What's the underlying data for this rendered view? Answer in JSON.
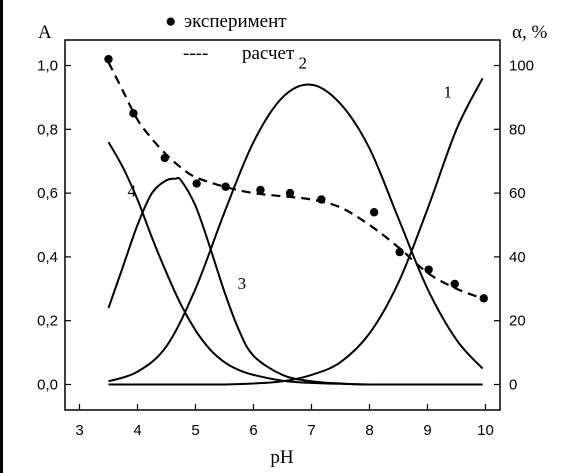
{
  "chart_data": {
    "type": "line",
    "xlabel": "pH",
    "ylabel_left": "A",
    "ylabel_right": "α, %",
    "xlim": [
      2.75,
      10.25
    ],
    "ylim_left": [
      -0.08,
      1.08
    ],
    "ylim_right": [
      -8,
      108
    ],
    "x_ticks": [
      "3",
      "4",
      "5",
      "6",
      "7",
      "8",
      "9",
      "10"
    ],
    "x_tick_values": [
      3,
      4,
      5,
      6,
      7,
      8,
      9,
      10
    ],
    "y_left_ticks": [
      "0,0",
      "0,2",
      "0,4",
      "0,6",
      "0,8",
      "1,0"
    ],
    "y_left_tick_values": [
      0,
      0.2,
      0.4,
      0.6,
      0.8,
      1.0
    ],
    "y_right_ticks": [
      "0",
      "20",
      "40",
      "60",
      "80",
      "100"
    ],
    "y_right_tick_values": [
      0,
      20,
      40,
      60,
      80,
      100
    ],
    "legend": [
      {
        "marker": "●",
        "label": "эксперимент"
      },
      {
        "marker": "----",
        "label": "расчет"
      }
    ],
    "series": [
      {
        "name": "1",
        "axis": "left",
        "style": "solid",
        "label_at": {
          "x": 9.35,
          "y": 0.9
        },
        "x": [
          3.5,
          4,
          4.5,
          5,
          5.5,
          6,
          6.5,
          7,
          7.5,
          8,
          8.5,
          9,
          9.5,
          9.95
        ],
        "y": [
          0,
          0,
          0,
          0,
          0,
          0.003,
          0.01,
          0.03,
          0.07,
          0.16,
          0.32,
          0.55,
          0.8,
          0.96
        ]
      },
      {
        "name": "2",
        "axis": "left",
        "style": "solid",
        "label_at": {
          "x": 6.85,
          "y": 0.99
        },
        "x": [
          3.5,
          4,
          4.5,
          5,
          5.5,
          6,
          6.5,
          7,
          7.5,
          8,
          8.5,
          9,
          9.5,
          9.95
        ],
        "y": [
          0.01,
          0.04,
          0.12,
          0.3,
          0.54,
          0.76,
          0.9,
          0.94,
          0.88,
          0.74,
          0.52,
          0.3,
          0.14,
          0.05
        ]
      },
      {
        "name": "3",
        "axis": "left",
        "style": "solid",
        "label_at": {
          "x": 5.8,
          "y": 0.3
        },
        "x": [
          3.5,
          3.75,
          4,
          4.25,
          4.5,
          4.65,
          4.75,
          5,
          5.25,
          5.5,
          5.75,
          6,
          6.5,
          7,
          7.5,
          8,
          9,
          9.95
        ],
        "y": [
          0.24,
          0.37,
          0.5,
          0.6,
          0.64,
          0.645,
          0.64,
          0.56,
          0.43,
          0.29,
          0.17,
          0.09,
          0.03,
          0.01,
          0.003,
          0,
          0,
          0
        ]
      },
      {
        "name": "4",
        "axis": "left",
        "style": "solid",
        "label_at": {
          "x": 3.9,
          "y": 0.59
        },
        "x": [
          3.5,
          3.75,
          4,
          4.25,
          4.5,
          4.75,
          5,
          5.25,
          5.5,
          5.75,
          6,
          6.5,
          7,
          7.5,
          8,
          9,
          9.95
        ],
        "y": [
          0.76,
          0.68,
          0.58,
          0.46,
          0.35,
          0.25,
          0.17,
          0.11,
          0.07,
          0.045,
          0.03,
          0.012,
          0.005,
          0.002,
          0,
          0,
          0
        ]
      },
      {
        "name": "расчет",
        "axis": "right",
        "style": "dashed",
        "x": [
          3.5,
          3.75,
          4,
          4.25,
          4.5,
          4.75,
          5,
          5.5,
          6,
          6.5,
          7,
          7.5,
          8,
          8.5,
          9,
          9.5,
          9.95
        ],
        "y": [
          101,
          92,
          83,
          77,
          72,
          68,
          65,
          62,
          60,
          59,
          58,
          55.5,
          50,
          43,
          35,
          30,
          27
        ]
      },
      {
        "name": "эксперимент",
        "axis": "right",
        "style": "points",
        "x": [
          3.5,
          3.93,
          4.47,
          5.02,
          5.52,
          6.12,
          6.63,
          7.17,
          8.08,
          8.52,
          9.02,
          9.47,
          9.97
        ],
        "y": [
          102,
          85,
          71,
          63,
          62,
          61,
          60,
          58,
          54,
          41.5,
          36,
          31.5,
          27
        ]
      }
    ]
  }
}
